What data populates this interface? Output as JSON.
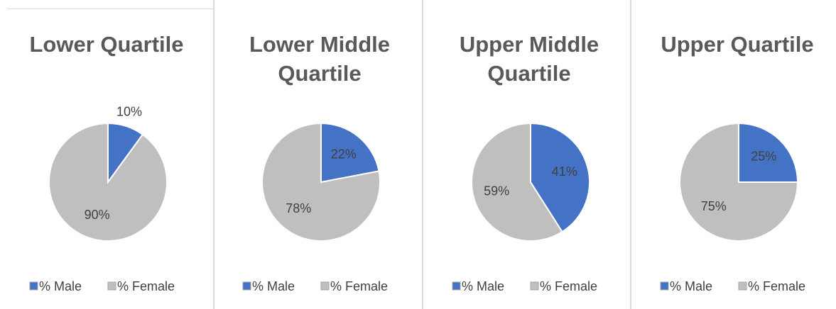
{
  "chart_data": [
    {
      "type": "pie",
      "title": "Lower Quartile",
      "categories": [
        "% Male",
        "% Female"
      ],
      "values": [
        10,
        90
      ],
      "value_labels": [
        "10%",
        "90%"
      ],
      "colors": [
        "#4472c4",
        "#bfbfbf"
      ]
    },
    {
      "type": "pie",
      "title": "Lower Middle Quartile",
      "categories": [
        "% Male",
        "% Female"
      ],
      "values": [
        22,
        78
      ],
      "value_labels": [
        "22%",
        "78%"
      ],
      "colors": [
        "#4472c4",
        "#bfbfbf"
      ]
    },
    {
      "type": "pie",
      "title": "Upper Middle Quartile",
      "categories": [
        "% Male",
        "% Female"
      ],
      "values": [
        41,
        59
      ],
      "value_labels": [
        "41%",
        "59%"
      ],
      "colors": [
        "#4472c4",
        "#bfbfbf"
      ]
    },
    {
      "type": "pie",
      "title": "Upper Quartile",
      "categories": [
        "% Male",
        "% Female"
      ],
      "values": [
        25,
        75
      ],
      "value_labels": [
        "25%",
        "75%"
      ],
      "colors": [
        "#4472c4",
        "#bfbfbf"
      ]
    }
  ]
}
